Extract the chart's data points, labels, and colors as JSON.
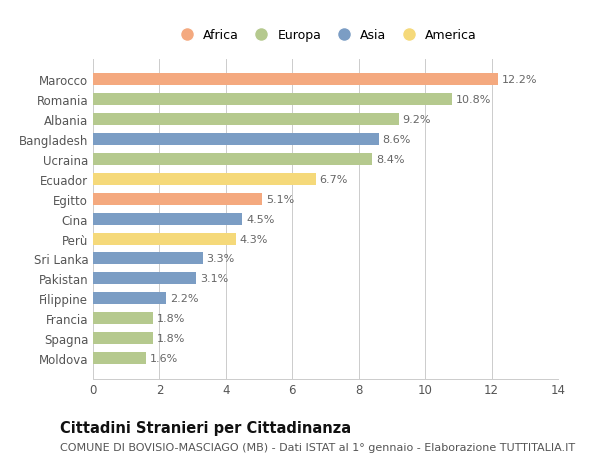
{
  "categories": [
    "Marocco",
    "Romania",
    "Albania",
    "Bangladesh",
    "Ucraina",
    "Ecuador",
    "Egitto",
    "Cina",
    "Perù",
    "Sri Lanka",
    "Pakistan",
    "Filippine",
    "Francia",
    "Spagna",
    "Moldova"
  ],
  "values": [
    12.2,
    10.8,
    9.2,
    8.6,
    8.4,
    6.7,
    5.1,
    4.5,
    4.3,
    3.3,
    3.1,
    2.2,
    1.8,
    1.8,
    1.6
  ],
  "continents": [
    "Africa",
    "Europa",
    "Europa",
    "Asia",
    "Europa",
    "America",
    "Africa",
    "Asia",
    "America",
    "Asia",
    "Asia",
    "Asia",
    "Europa",
    "Europa",
    "Europa"
  ],
  "colors": {
    "Africa": "#F4A97F",
    "Europa": "#B5C98E",
    "Asia": "#7B9DC4",
    "America": "#F5D97A"
  },
  "legend_order": [
    "Africa",
    "Europa",
    "Asia",
    "America"
  ],
  "xlim": [
    0,
    14
  ],
  "xticks": [
    0,
    2,
    4,
    6,
    8,
    10,
    12,
    14
  ],
  "title": "Cittadini Stranieri per Cittadinanza",
  "subtitle": "COMUNE DI BOVISIO-MASCIAGO (MB) - Dati ISTAT al 1° gennaio - Elaborazione TUTTITALIA.IT",
  "bg_color": "#FFFFFF",
  "grid_color": "#CCCCCC",
  "bar_height": 0.6,
  "value_fontsize": 8,
  "label_fontsize": 8.5,
  "tick_fontsize": 8.5,
  "title_fontsize": 10.5,
  "subtitle_fontsize": 8
}
